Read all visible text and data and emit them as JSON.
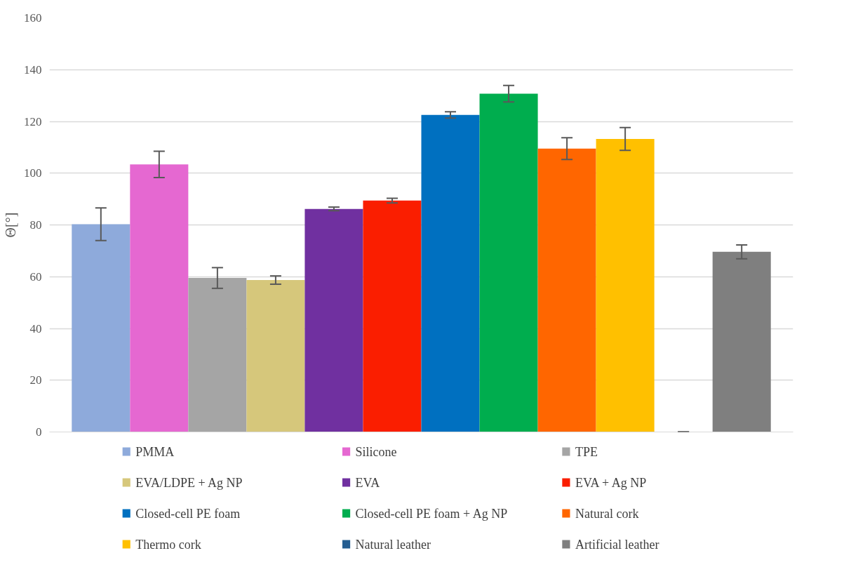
{
  "chart_data": {
    "type": "bar",
    "ylabel": "Θ[°]",
    "categories": [
      null
    ],
    "series": [
      {
        "name": "PMMA",
        "color": "#8eaadb",
        "values": [
          80.3
        ],
        "errors": [
          6.3
        ]
      },
      {
        "name": "Silicone",
        "color": "#e568d1",
        "values": [
          103.4
        ],
        "errors": [
          5.1
        ]
      },
      {
        "name": "TPE",
        "color": "#a5a5a5",
        "values": [
          59.5
        ],
        "errors": [
          4.0
        ]
      },
      {
        "name": "EVA/LDPE + Ag NP",
        "color": "#d6c77b",
        "values": [
          58.7
        ],
        "errors": [
          1.6
        ]
      },
      {
        "name": "EVA",
        "color": "#7030a0",
        "values": [
          86.2
        ],
        "errors": [
          0.7
        ]
      },
      {
        "name": "EVA + Ag NP",
        "color": "#fa1e00",
        "values": [
          89.4
        ],
        "errors": [
          0.9
        ]
      },
      {
        "name": "Closed-cell PE foam",
        "color": "#0070c0",
        "values": [
          122.5
        ],
        "errors": [
          1.2
        ]
      },
      {
        "name": "Closed-cell PE foam + Ag NP",
        "color": "#00ad4e",
        "values": [
          130.7
        ],
        "errors": [
          3.2
        ]
      },
      {
        "name": "Natural cork",
        "color": "#ff6600",
        "values": [
          109.5
        ],
        "errors": [
          4.2
        ]
      },
      {
        "name": "Thermo cork",
        "color": "#ffc000",
        "values": [
          113.2
        ],
        "errors": [
          4.4
        ]
      },
      {
        "name": "Natural leather",
        "color": "#255e91",
        "values": [
          0
        ],
        "errors": [
          0
        ]
      },
      {
        "name": "Artificial leather",
        "color": "#7f7f7f",
        "values": [
          69.6
        ],
        "errors": [
          2.7
        ]
      }
    ],
    "ylim": [
      0,
      160
    ],
    "yticks": [
      0,
      20,
      40,
      60,
      80,
      100,
      120,
      140,
      160
    ],
    "grid": "y",
    "legend": "bottom",
    "tick_labels": "y"
  }
}
